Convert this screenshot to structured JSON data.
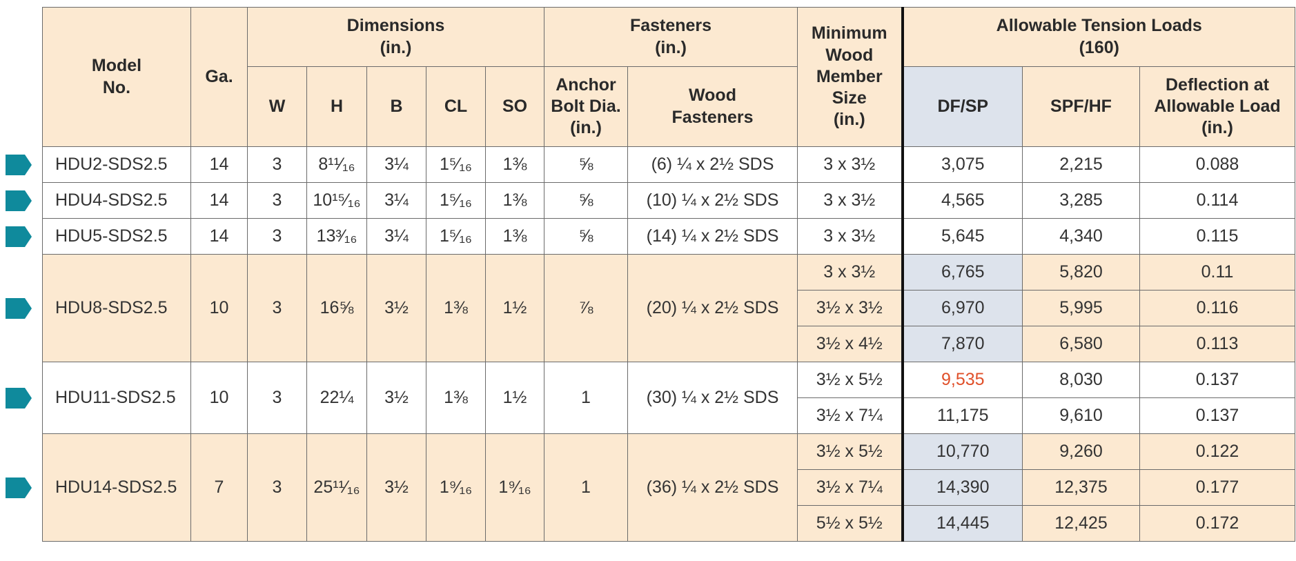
{
  "headers": {
    "model": "Model\nNo.",
    "ga": "Ga.",
    "dimensions": "Dimensions\n(in.)",
    "w": "W",
    "h": "H",
    "b": "B",
    "cl": "CL",
    "so": "SO",
    "fasteners": "Fasteners\n(in.)",
    "anchor": "Anchor\nBolt Dia.\n(in.)",
    "wood": "Wood\nFasteners",
    "min_wood": "Minimum\nWood\nMember\nSize\n(in.)",
    "allowable": "Allowable Tension Loads\n(160)",
    "df": "DF/SP",
    "spf": "SPF/HF",
    "deflection": "Deflection at\nAllowable Load\n(in.)"
  },
  "rows": [
    {
      "model": "HDU2-SDS2.5",
      "ga": "14",
      "w": "3",
      "h": "8¹¹⁄₁₆",
      "b": "3¼",
      "cl": "1⁵⁄₁₆",
      "so": "1⅜",
      "anchor": "⅝",
      "wood": "(6) ¼ x 2½ SDS",
      "loads": [
        {
          "size": "3 x 3½",
          "df": "3,075",
          "spf": "2,215",
          "deflection": "0.088"
        }
      ]
    },
    {
      "model": "HDU4-SDS2.5",
      "ga": "14",
      "w": "3",
      "h": "10¹⁵⁄₁₆",
      "b": "3¼",
      "cl": "1⁵⁄₁₆",
      "so": "1⅜",
      "anchor": "⅝",
      "wood": "(10) ¼ x 2½ SDS",
      "loads": [
        {
          "size": "3 x 3½",
          "df": "4,565",
          "spf": "3,285",
          "deflection": "0.114"
        }
      ]
    },
    {
      "model": "HDU5-SDS2.5",
      "ga": "14",
      "w": "3",
      "h": "13³⁄₁₆",
      "b": "3¼",
      "cl": "1⁵⁄₁₆",
      "so": "1⅜",
      "anchor": "⅝",
      "wood": "(14) ¼ x 2½ SDS",
      "loads": [
        {
          "size": "3 x 3½",
          "df": "5,645",
          "spf": "4,340",
          "deflection": "0.115"
        }
      ]
    },
    {
      "model": "HDU8-SDS2.5",
      "ga": "10",
      "w": "3",
      "h": "16⅝",
      "b": "3½",
      "cl": "1⅜",
      "so": "1½",
      "anchor": "⅞",
      "wood": "(20) ¼ x 2½ SDS",
      "background": "#fce9d1",
      "loads": [
        {
          "size": "3 x 3½",
          "df": "6,765",
          "spf": "5,820",
          "deflection": "0.11"
        },
        {
          "size": "3½ x 3½",
          "df": "6,970",
          "spf": "5,995",
          "deflection": "0.116"
        },
        {
          "size": "3½ x 4½",
          "df": "7,870",
          "spf": "6,580",
          "deflection": "0.113"
        }
      ]
    },
    {
      "model": "HDU11-SDS2.5",
      "ga": "10",
      "w": "3",
      "h": "22¼",
      "b": "3½",
      "cl": "1⅜",
      "so": "1½",
      "anchor": "1",
      "wood": "(30) ¼ x 2½ SDS",
      "loads": [
        {
          "size": "3½ x 5½",
          "df": "9,535",
          "df_color": "#e0502a",
          "spf": "8,030",
          "deflection": "0.137"
        },
        {
          "size": "3½ x 7¼",
          "df": "11,175",
          "spf": "9,610",
          "deflection": "0.137"
        }
      ]
    },
    {
      "model": "HDU14-SDS2.5",
      "ga": "7",
      "w": "3",
      "h": "25¹¹⁄₁₆",
      "b": "3½",
      "cl": "1⁹⁄₁₆",
      "so": "1⁹⁄₁₆",
      "anchor": "1",
      "wood": "(36) ¼ x 2½ SDS",
      "background": "#fce9d1",
      "loads": [
        {
          "size": "3½ x 5½",
          "df": "10,770",
          "spf": "9,260",
          "deflection": "0.122"
        },
        {
          "size": "3½ x 7¼",
          "df": "14,390",
          "spf": "12,375",
          "deflection": "0.177"
        },
        {
          "size": "5½ x 5½",
          "df": "14,445",
          "spf": "12,425",
          "deflection": "0.172"
        }
      ]
    }
  ]
}
